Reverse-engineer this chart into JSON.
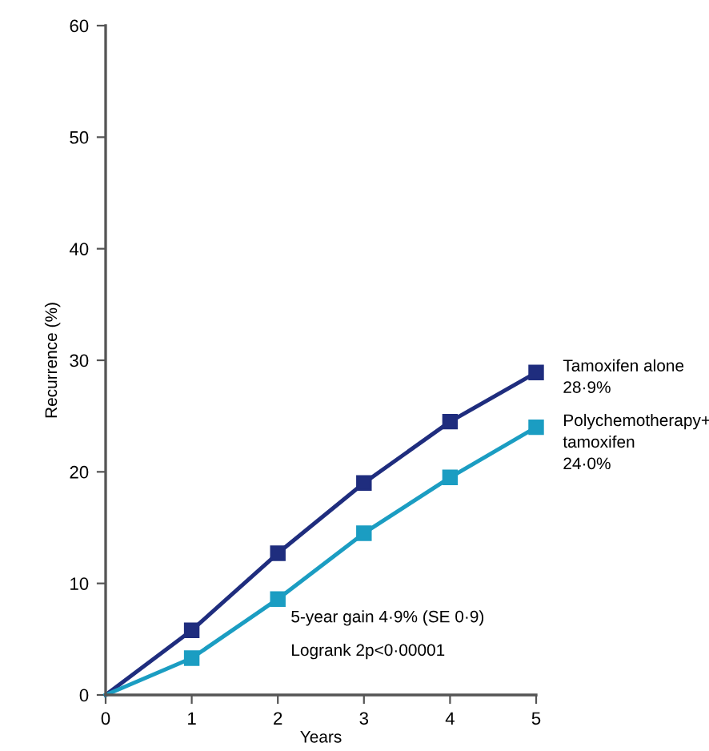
{
  "chart_data": {
    "type": "line",
    "xlabel": "Years",
    "ylabel": "Recurrence (%)",
    "x": [
      0,
      1,
      2,
      3,
      4,
      5
    ],
    "series": [
      {
        "name": "Tamoxifen alone\n28·9%",
        "color": "#1f2d7e",
        "values": [
          0,
          5.8,
          12.7,
          19.0,
          24.5,
          28.9
        ]
      },
      {
        "name": "Polychemotherapy+\ntamoxifen\n24·0%",
        "color": "#1b9dc2",
        "values": [
          0,
          3.3,
          8.6,
          14.5,
          19.5,
          24.0
        ]
      }
    ],
    "xlim": [
      0,
      5
    ],
    "ylim": [
      0,
      60
    ],
    "xticks": [
      0,
      1,
      2,
      3,
      4,
      5
    ],
    "yticks": [
      0,
      10,
      20,
      30,
      40,
      50,
      60
    ],
    "annotations": [
      "5-year gain 4·9% (SE 0·9)",
      "Logrank 2p<0·00001"
    ],
    "marker": "square",
    "line_style": "solid",
    "grid": false,
    "legend": false
  }
}
